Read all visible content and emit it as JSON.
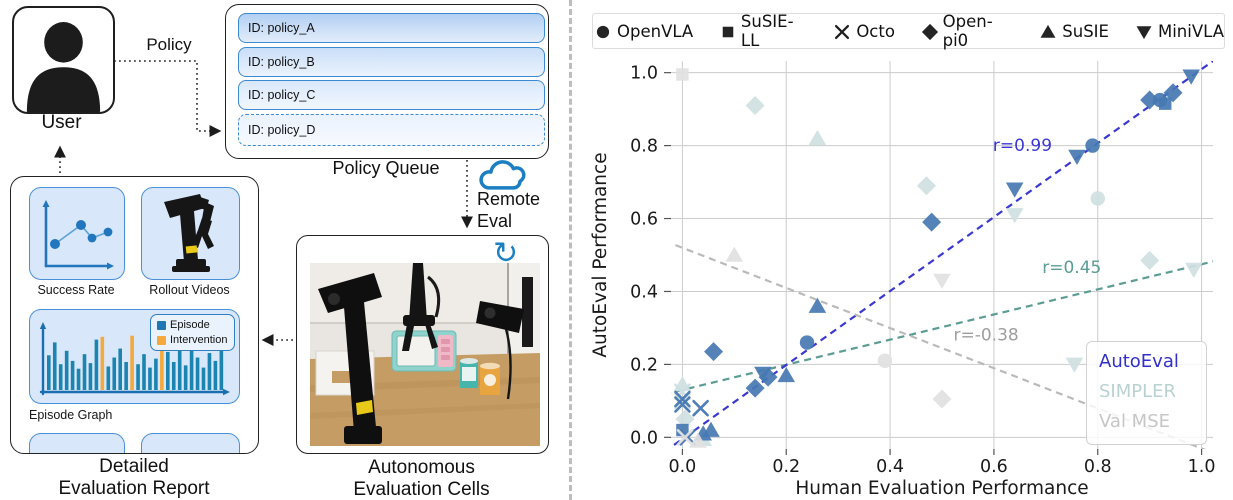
{
  "colors": {
    "diagram_accent_blue": "#3c8ad2",
    "icon_blue": "#1b7fc2",
    "bar_blue": "#1b84b0",
    "bar_orange": "#f3a93c"
  },
  "diagram": {
    "user_label": "User",
    "policy_label": "Policy",
    "queue": {
      "caption": "Policy Queue",
      "items": [
        {
          "label": "ID: policy_A",
          "fill": "#b2cff3",
          "dashed": false
        },
        {
          "label": "ID: policy_B",
          "fill": "#c9def8",
          "dashed": false
        },
        {
          "label": "ID: policy_C",
          "fill": "#d9e8fb",
          "dashed": false
        },
        {
          "label": "ID: policy_D",
          "fill": "#eaf2fd",
          "dashed": true
        }
      ]
    },
    "remote_eval": {
      "line1": "Remote",
      "line2": "Eval"
    },
    "report": {
      "tiles": [
        {
          "caption": "Success Rate"
        },
        {
          "caption": "Rollout Videos"
        }
      ],
      "episode_graph": {
        "caption": "Episode Graph",
        "legend": [
          {
            "label": "Episode",
            "color": "#1f77b4"
          },
          {
            "label": "Intervention",
            "color": "#f3a93c"
          }
        ],
        "bars": [
          {
            "h": 0.62
          },
          {
            "h": 0.85
          },
          {
            "h": 0.46
          },
          {
            "h": 0.7
          },
          {
            "h": 0.52
          },
          {
            "h": 0.38
          },
          {
            "h": 0.64
          },
          {
            "h": 0.48
          },
          {
            "h": 0.9
          },
          {
            "h": 0.95,
            "c": "intervention"
          },
          {
            "h": 0.42
          },
          {
            "h": 0.58
          },
          {
            "h": 0.74
          },
          {
            "h": 0.5
          },
          {
            "h": 0.97,
            "c": "intervention"
          },
          {
            "h": 0.46
          },
          {
            "h": 0.64
          },
          {
            "h": 0.4
          },
          {
            "h": 0.56
          },
          {
            "h": 0.93,
            "c": "intervention"
          },
          {
            "h": 0.68
          },
          {
            "h": 0.5
          },
          {
            "h": 0.8
          },
          {
            "h": 0.44
          },
          {
            "h": 0.86
          },
          {
            "h": 0.58
          },
          {
            "h": 0.4
          },
          {
            "h": 0.66
          },
          {
            "h": 0.52
          },
          {
            "h": 0.74
          }
        ]
      },
      "caption_line1": "Detailed",
      "caption_line2": "Evaluation Report"
    },
    "cells": {
      "caption_line1": "Autonomous",
      "caption_line2": "Evaluation Cells"
    }
  },
  "chart_data": {
    "type": "scatter",
    "xlabel": "Human Evaluation Performance",
    "ylabel": "AutoEval Performance",
    "xlim": [
      -0.022,
      1.022
    ],
    "ylim": [
      -0.032,
      1.032
    ],
    "xticks": [
      0.0,
      0.2,
      0.4,
      0.6,
      0.8,
      1.0
    ],
    "yticks": [
      0.0,
      0.2,
      0.4,
      0.6,
      0.8,
      1.0
    ],
    "grid": true,
    "marker_legend": [
      {
        "label": "OpenVLA",
        "marker": "circle"
      },
      {
        "label": "SuSIE-LL",
        "marker": "square"
      },
      {
        "label": "Octo",
        "marker": "x"
      },
      {
        "label": "Open-pi0",
        "marker": "diamond"
      },
      {
        "label": "SuSIE",
        "marker": "triangle-up"
      },
      {
        "label": "MiniVLA",
        "marker": "triangle-down"
      }
    ],
    "series": [
      {
        "name": "SIMPLER",
        "marker_color": "#cfdfe1",
        "line_color": "#5b9c95",
        "label_color": "#b9d1d1",
        "r_label": "r=0.45",
        "r_label_pos": [
          0.75,
          0.45
        ],
        "trend": [
          [
            -0.035,
            0.118
          ],
          [
            1.03,
            0.485
          ]
        ],
        "points": [
          {
            "m": "diamond",
            "x": 0.14,
            "y": 0.91
          },
          {
            "m": "triangle-up",
            "x": 0.26,
            "y": 0.82
          },
          {
            "m": "diamond",
            "x": 0.47,
            "y": 0.69
          },
          {
            "m": "triangle-down",
            "x": 0.64,
            "y": 0.61
          },
          {
            "m": "circle",
            "x": 0.8,
            "y": 0.655
          },
          {
            "m": "diamond",
            "x": 0.9,
            "y": 0.485
          },
          {
            "m": "triangle-down",
            "x": 0.985,
            "y": 0.46
          },
          {
            "m": "triangle-down",
            "x": 0.755,
            "y": 0.2
          },
          {
            "m": "triangle-up",
            "x": 0.0,
            "y": 0.145
          },
          {
            "m": "x",
            "x": 0.0,
            "y": 0.125
          },
          {
            "m": "x",
            "x": 0.0,
            "y": 0.1
          },
          {
            "m": "diamond",
            "x": 0.005,
            "y": 0.05
          },
          {
            "m": "triangle-up",
            "x": 0.04,
            "y": -0.005
          }
        ]
      },
      {
        "name": "AutoEval",
        "marker_color": "#4678b2",
        "line_color": "#3a38d2",
        "label_color": "#3230cb",
        "r_label": "r=0.99",
        "r_label_pos": [
          0.655,
          0.785
        ],
        "trend": [
          [
            -0.035,
            -0.04
          ],
          [
            1.03,
            1.04
          ]
        ],
        "points": [
          {
            "m": "square",
            "x": 0.0,
            "y": 0.02
          },
          {
            "m": "x",
            "x": 0.0,
            "y": 0.105
          },
          {
            "m": "x",
            "x": 0.0,
            "y": 0.09
          },
          {
            "m": "x",
            "x": 0.035,
            "y": 0.08
          },
          {
            "m": "x",
            "x": 0.01,
            "y": 0.0
          },
          {
            "m": "triangle-up",
            "x": 0.04,
            "y": 0.01
          },
          {
            "m": "triangle-up",
            "x": 0.055,
            "y": 0.02
          },
          {
            "m": "diamond",
            "x": 0.06,
            "y": 0.235
          },
          {
            "m": "diamond",
            "x": 0.14,
            "y": 0.135
          },
          {
            "m": "diamond",
            "x": 0.165,
            "y": 0.165
          },
          {
            "m": "triangle-down",
            "x": 0.155,
            "y": 0.175
          },
          {
            "m": "triangle-up",
            "x": 0.2,
            "y": 0.17
          },
          {
            "m": "circle",
            "x": 0.24,
            "y": 0.26
          },
          {
            "m": "triangle-up",
            "x": 0.26,
            "y": 0.36
          },
          {
            "m": "diamond",
            "x": 0.48,
            "y": 0.59
          },
          {
            "m": "triangle-down",
            "x": 0.64,
            "y": 0.68
          },
          {
            "m": "triangle-down",
            "x": 0.76,
            "y": 0.77
          },
          {
            "m": "circle",
            "x": 0.79,
            "y": 0.8
          },
          {
            "m": "diamond",
            "x": 0.9,
            "y": 0.925
          },
          {
            "m": "square",
            "x": 0.93,
            "y": 0.915
          },
          {
            "m": "circle",
            "x": 0.92,
            "y": 0.925
          },
          {
            "m": "diamond",
            "x": 0.945,
            "y": 0.945
          },
          {
            "m": "triangle-down",
            "x": 0.98,
            "y": 0.99
          }
        ]
      },
      {
        "name": "Val MSE",
        "marker_color": "#e1e1e1",
        "line_color": "#bababa",
        "label_color": "#c6c6c6",
        "r_label": "r=-0.38",
        "r_label_pos": [
          0.585,
          0.265
        ],
        "trend": [
          [
            -0.035,
            0.539
          ],
          [
            1.03,
            -0.047
          ]
        ],
        "points": [
          {
            "m": "square",
            "x": 0.0,
            "y": 0.995
          },
          {
            "m": "triangle-up",
            "x": 0.1,
            "y": 0.5
          },
          {
            "m": "triangle-down",
            "x": 0.5,
            "y": 0.43
          },
          {
            "m": "circle",
            "x": 0.39,
            "y": 0.21
          },
          {
            "m": "diamond",
            "x": 0.5,
            "y": 0.105
          },
          {
            "m": "x",
            "x": 0.005,
            "y": 0.0
          },
          {
            "m": "triangle-up",
            "x": 0.03,
            "y": -0.01
          }
        ]
      }
    ],
    "corner_legend_order": [
      "AutoEval",
      "SIMPLER",
      "Val MSE"
    ]
  }
}
